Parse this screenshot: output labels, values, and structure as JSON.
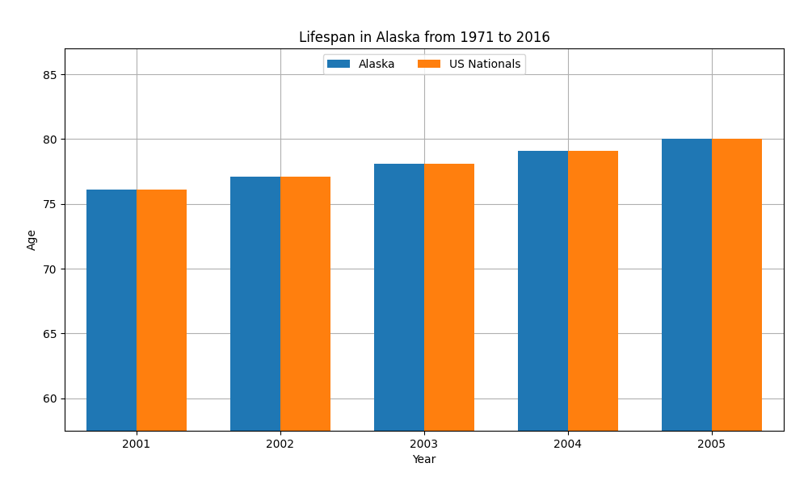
{
  "chart_data": {
    "type": "bar",
    "title": "Lifespan in Alaska from 1971 to 2016",
    "x_label": "Year",
    "y_label": "Age",
    "categories": [
      "2001",
      "2002",
      "2003",
      "2004",
      "2005"
    ],
    "series": [
      {
        "name": "Alaska",
        "values": [
          76.1,
          77.1,
          78.1,
          79.1,
          80.0
        ]
      },
      {
        "name": "US Nationals",
        "values": [
          76.1,
          77.1,
          78.1,
          79.1,
          80.0
        ]
      }
    ],
    "ylim": [
      57.5,
      87
    ],
    "yticks": [
      60,
      65,
      70,
      75,
      80,
      85
    ],
    "grid": true,
    "legend": "upper center"
  }
}
